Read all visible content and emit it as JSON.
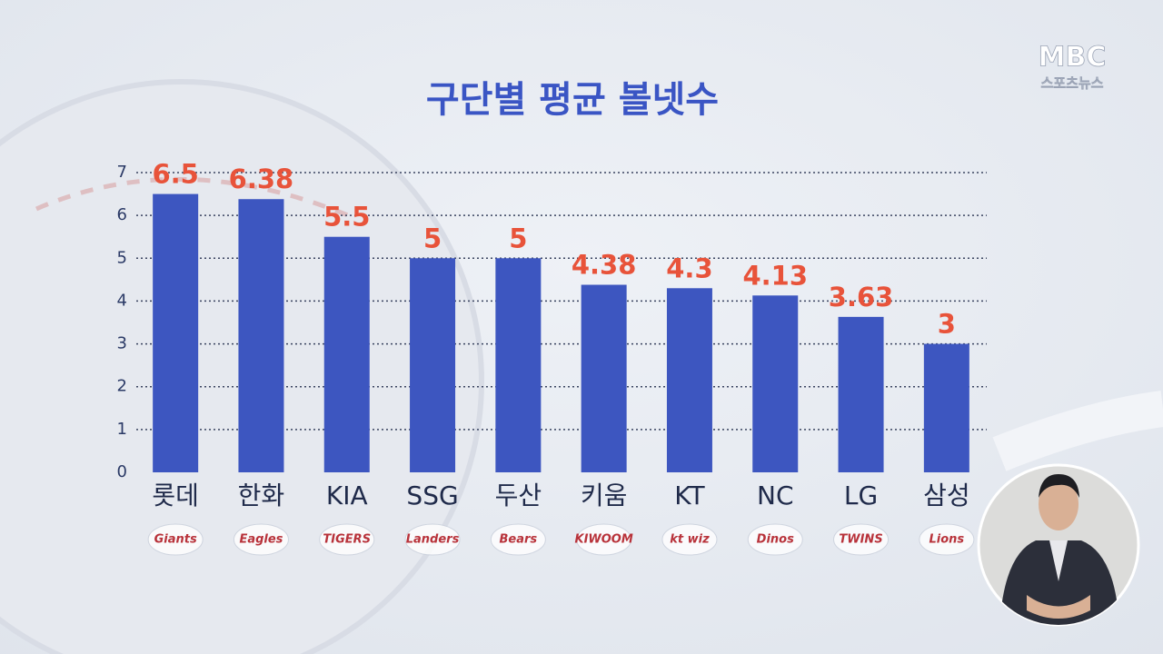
{
  "chart_data": {
    "type": "bar",
    "title": "구단별 평균 볼넷수",
    "categories": [
      "롯데",
      "한화",
      "KIA",
      "SSG",
      "두산",
      "키움",
      "KT",
      "NC",
      "LG",
      "삼성"
    ],
    "values": [
      6.5,
      6.38,
      5.5,
      5,
      5,
      4.38,
      4.3,
      4.13,
      3.63,
      3
    ],
    "color": "#3d56c0",
    "value_label_color": "#e8533a",
    "ylim": [
      0,
      7
    ],
    "yticks": [
      0,
      1,
      2,
      3,
      4,
      5,
      6,
      7
    ],
    "grid": true,
    "team_logos": [
      "Giants",
      "Eagles",
      "TIGERS",
      "Landers",
      "Bears",
      "KIWOOM",
      "kt wiz",
      "Dinos",
      "TWINS",
      "Lions"
    ]
  },
  "broadcaster": {
    "name": "MBC",
    "program": "스포츠뉴스"
  }
}
